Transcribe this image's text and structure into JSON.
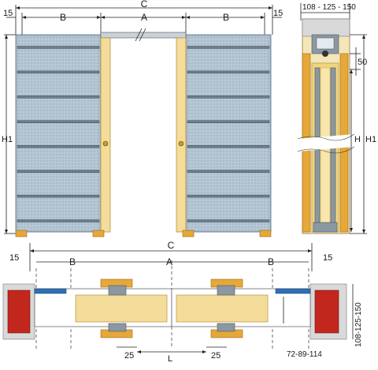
{
  "labels": {
    "top_c": "C",
    "top_a": "A",
    "top_b_left": "B",
    "top_b_right": "B",
    "top_15_left": "15",
    "top_15_right": "15",
    "h1_left": "H1",
    "side_width": "108 - 125 - 150",
    "side_50": "50",
    "side_h": "H",
    "side_h1": "H1",
    "plan_c": "C",
    "plan_a": "A",
    "plan_b_left": "B",
    "plan_b_right": "B",
    "plan_15_left": "15",
    "plan_15_right": "15",
    "plan_25_left": "25",
    "plan_25_right": "25",
    "plan_l": "L",
    "plan_wall": "108-125-150",
    "plan_door": "72-89-114"
  },
  "colors": {
    "frame": "#a8bccc",
    "door": "#f4dc9a",
    "wood": "#e6a838",
    "brick": "#c2271e",
    "gasket": "#2f6fb5"
  }
}
